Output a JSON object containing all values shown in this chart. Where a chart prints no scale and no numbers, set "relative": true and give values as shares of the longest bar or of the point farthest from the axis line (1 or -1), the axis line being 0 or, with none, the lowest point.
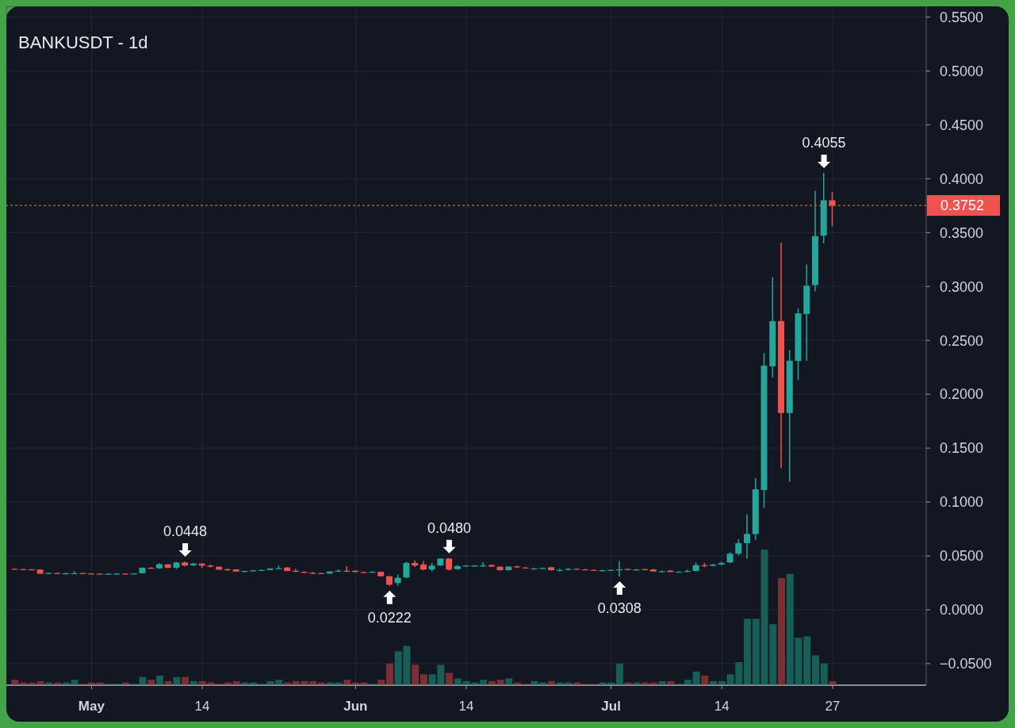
{
  "chart_data": [
    {
      "type": "candlestick",
      "title": "BANKUSDT - 1d",
      "x": [
        "--04-22",
        "--04-23",
        "--04-24",
        "--04-25",
        "--04-26",
        "--04-27",
        "--04-28",
        "--04-29",
        "--04-30",
        "--05-01",
        "--05-02",
        "--05-03",
        "--05-04",
        "--05-05",
        "--05-06",
        "--05-07",
        "--05-08",
        "--05-09",
        "--05-10",
        "--05-11",
        "--05-12",
        "--05-13",
        "--05-14",
        "--05-15",
        "--05-16",
        "--05-17",
        "--05-18",
        "--05-19",
        "--05-20",
        "--05-21",
        "--05-22",
        "--05-23",
        "--05-24",
        "--05-25",
        "--05-26",
        "--05-27",
        "--05-28",
        "--05-29",
        "--05-30",
        "--05-31",
        "--06-01",
        "--06-02",
        "--06-03",
        "--06-04",
        "--06-05",
        "--06-06",
        "--06-07",
        "--06-08",
        "--06-09",
        "--06-10",
        "--06-11",
        "--06-12",
        "--06-13",
        "--06-14",
        "--06-15",
        "--06-16",
        "--06-17",
        "--06-18",
        "--06-19",
        "--06-20",
        "--06-21",
        "--06-22",
        "--06-23",
        "--06-24",
        "--06-25",
        "--06-26",
        "--06-27",
        "--06-28",
        "--06-29",
        "--06-30",
        "--07-01",
        "--07-02",
        "--07-03",
        "--07-04",
        "--07-05",
        "--07-06",
        "--07-07",
        "--07-08",
        "--07-09",
        "--07-10",
        "--07-11",
        "--07-12",
        "--07-13",
        "--07-14",
        "--07-15",
        "--07-16",
        "--07-17",
        "--07-18",
        "--07-19",
        "--07-20",
        "--07-21",
        "--07-22",
        "--07-23",
        "--07-24",
        "--07-25",
        "--07-26",
        "--07-27"
      ],
      "ohlc": [
        [
          0.038,
          0.0383,
          0.0374,
          0.0376
        ],
        [
          0.0377,
          0.038,
          0.0372,
          0.0374
        ],
        [
          0.0375,
          0.0378,
          0.037,
          0.0372
        ],
        [
          0.0373,
          0.0376,
          0.0332,
          0.0334
        ],
        [
          0.0334,
          0.0344,
          0.033,
          0.0342
        ],
        [
          0.0341,
          0.0344,
          0.0333,
          0.0336
        ],
        [
          0.0336,
          0.0346,
          0.0331,
          0.0338
        ],
        [
          0.0337,
          0.0358,
          0.0331,
          0.0339
        ],
        [
          0.034,
          0.0343,
          0.0333,
          0.0336
        ],
        [
          0.0337,
          0.034,
          0.0331,
          0.0334
        ],
        [
          0.0335,
          0.0338,
          0.033,
          0.0333
        ],
        [
          0.0333,
          0.0337,
          0.033,
          0.0334
        ],
        [
          0.0333,
          0.0337,
          0.033,
          0.0335
        ],
        [
          0.0335,
          0.0338,
          0.033,
          0.0333
        ],
        [
          0.0333,
          0.0339,
          0.033,
          0.0337
        ],
        [
          0.0339,
          0.0392,
          0.0336,
          0.039
        ],
        [
          0.039,
          0.0395,
          0.0378,
          0.0384
        ],
        [
          0.0384,
          0.0434,
          0.0378,
          0.0422
        ],
        [
          0.0421,
          0.0425,
          0.0385,
          0.039
        ],
        [
          0.039,
          0.0446,
          0.0378,
          0.0438
        ],
        [
          0.0439,
          0.0448,
          0.0403,
          0.041
        ],
        [
          0.0412,
          0.0436,
          0.0408,
          0.0428
        ],
        [
          0.0428,
          0.0432,
          0.039,
          0.041
        ],
        [
          0.041,
          0.042,
          0.0392,
          0.0399
        ],
        [
          0.0399,
          0.0402,
          0.037,
          0.0372
        ],
        [
          0.0376,
          0.0384,
          0.0362,
          0.0372
        ],
        [
          0.0374,
          0.0377,
          0.0353,
          0.0355
        ],
        [
          0.0355,
          0.0362,
          0.0347,
          0.036
        ],
        [
          0.0358,
          0.0368,
          0.0354,
          0.0366
        ],
        [
          0.0366,
          0.0372,
          0.0362,
          0.0369
        ],
        [
          0.0369,
          0.0386,
          0.0366,
          0.0383
        ],
        [
          0.0382,
          0.041,
          0.0379,
          0.0385
        ],
        [
          0.0392,
          0.0395,
          0.0358,
          0.036
        ],
        [
          0.0362,
          0.038,
          0.035,
          0.0352
        ],
        [
          0.0352,
          0.0355,
          0.034,
          0.0343
        ],
        [
          0.0343,
          0.035,
          0.033,
          0.034
        ],
        [
          0.034,
          0.0344,
          0.0332,
          0.0336
        ],
        [
          0.0336,
          0.0358,
          0.0333,
          0.0355
        ],
        [
          0.0355,
          0.0375,
          0.0352,
          0.0362
        ],
        [
          0.0362,
          0.0405,
          0.035,
          0.0358
        ],
        [
          0.0362,
          0.0366,
          0.0348,
          0.035
        ],
        [
          0.035,
          0.0353,
          0.0343,
          0.0347
        ],
        [
          0.0347,
          0.0356,
          0.0344,
          0.0352
        ],
        [
          0.0352,
          0.0355,
          0.0308,
          0.0311
        ],
        [
          0.0311,
          0.0314,
          0.0222,
          0.0233
        ],
        [
          0.0248,
          0.0328,
          0.0224,
          0.0297
        ],
        [
          0.03,
          0.0446,
          0.0292,
          0.0434
        ],
        [
          0.0434,
          0.0458,
          0.0397,
          0.041
        ],
        [
          0.042,
          0.045,
          0.0365,
          0.0373
        ],
        [
          0.0373,
          0.0434,
          0.0355,
          0.0409
        ],
        [
          0.0412,
          0.0478,
          0.0405,
          0.0475
        ],
        [
          0.0475,
          0.048,
          0.0365,
          0.0372
        ],
        [
          0.0377,
          0.0415,
          0.037,
          0.0405
        ],
        [
          0.0405,
          0.0414,
          0.04,
          0.041
        ],
        [
          0.0408,
          0.0414,
          0.0402,
          0.041
        ],
        [
          0.0408,
          0.0441,
          0.0398,
          0.0411
        ],
        [
          0.0415,
          0.042,
          0.0396,
          0.04
        ],
        [
          0.0399,
          0.0402,
          0.0364,
          0.0367
        ],
        [
          0.0367,
          0.0404,
          0.0363,
          0.04
        ],
        [
          0.0402,
          0.041,
          0.039,
          0.0395
        ],
        [
          0.0392,
          0.0396,
          0.0382,
          0.0385
        ],
        [
          0.038,
          0.0388,
          0.0372,
          0.0383
        ],
        [
          0.0382,
          0.0392,
          0.0378,
          0.0388
        ],
        [
          0.0394,
          0.0397,
          0.0364,
          0.0367
        ],
        [
          0.0367,
          0.038,
          0.0355,
          0.037
        ],
        [
          0.037,
          0.0385,
          0.0366,
          0.038
        ],
        [
          0.038,
          0.0384,
          0.0372,
          0.0375
        ],
        [
          0.0375,
          0.0378,
          0.0366,
          0.037
        ],
        [
          0.037,
          0.0373,
          0.0359,
          0.0362
        ],
        [
          0.0362,
          0.037,
          0.0355,
          0.0367
        ],
        [
          0.0367,
          0.0374,
          0.0362,
          0.037
        ],
        [
          0.037,
          0.0451,
          0.0308,
          0.0375
        ],
        [
          0.0378,
          0.0382,
          0.0366,
          0.037
        ],
        [
          0.037,
          0.0378,
          0.0366,
          0.0374
        ],
        [
          0.0376,
          0.038,
          0.0368,
          0.0372
        ],
        [
          0.0374,
          0.0378,
          0.0352,
          0.0355
        ],
        [
          0.0355,
          0.0362,
          0.0345,
          0.0358
        ],
        [
          0.0363,
          0.037,
          0.0348,
          0.035
        ],
        [
          0.035,
          0.0356,
          0.0346,
          0.0353
        ],
        [
          0.0352,
          0.0372,
          0.0348,
          0.036
        ],
        [
          0.036,
          0.0438,
          0.0356,
          0.0414
        ],
        [
          0.0414,
          0.0434,
          0.0395,
          0.0405
        ],
        [
          0.0408,
          0.0425,
          0.0402,
          0.042
        ],
        [
          0.042,
          0.0444,
          0.0414,
          0.0434
        ],
        [
          0.044,
          0.0535,
          0.0432,
          0.052
        ],
        [
          0.052,
          0.0655,
          0.0505,
          0.0618
        ],
        [
          0.0618,
          0.0885,
          0.0474,
          0.0704
        ],
        [
          0.0702,
          0.1221,
          0.0649,
          0.1118
        ],
        [
          0.1111,
          0.2382,
          0.0946,
          0.2265
        ],
        [
          0.2259,
          0.3086,
          0.2154,
          0.2679
        ],
        [
          0.2679,
          0.3406,
          0.1313,
          0.1826
        ],
        [
          0.1826,
          0.2409,
          0.119,
          0.2311
        ],
        [
          0.2309,
          0.2797,
          0.2133,
          0.275
        ],
        [
          0.2745,
          0.3204,
          0.2309,
          0.3007
        ],
        [
          0.3013,
          0.3887,
          0.2956,
          0.3467
        ],
        [
          0.3472,
          0.4055,
          0.3401,
          0.38
        ],
        [
          0.38,
          0.3875,
          0.3559,
          0.3752
        ]
      ],
      "colors": [
        "#ef5350",
        "#ef5350",
        "#ef5350",
        "#ef5350",
        "#26a69a",
        "#ef5350",
        "#26a69a",
        "#26a69a",
        "#ef5350",
        "#ef5350",
        "#ef5350",
        "#26a69a",
        "#26a69a",
        "#ef5350",
        "#26a69a",
        "#26a69a",
        "#ef5350",
        "#26a69a",
        "#ef5350",
        "#26a69a",
        "#ef5350",
        "#26a69a",
        "#ef5350",
        "#ef5350",
        "#ef5350",
        "#ef5350",
        "#ef5350",
        "#26a69a",
        "#26a69a",
        "#26a69a",
        "#26a69a",
        "#26a69a",
        "#ef5350",
        "#ef5350",
        "#ef5350",
        "#ef5350",
        "#ef5350",
        "#26a69a",
        "#26a69a",
        "#ef5350",
        "#ef5350",
        "#ef5350",
        "#26a69a",
        "#ef5350",
        "#ef5350",
        "#26a69a",
        "#26a69a",
        "#ef5350",
        "#ef5350",
        "#26a69a",
        "#26a69a",
        "#ef5350",
        "#26a69a",
        "#26a69a",
        "#26a69a",
        "#26a69a",
        "#ef5350",
        "#ef5350",
        "#26a69a",
        "#ef5350",
        "#ef5350",
        "#26a69a",
        "#26a69a",
        "#ef5350",
        "#26a69a",
        "#26a69a",
        "#ef5350",
        "#ef5350",
        "#ef5350",
        "#26a69a",
        "#26a69a",
        "#26a69a",
        "#ef5350",
        "#26a69a",
        "#ef5350",
        "#ef5350",
        "#26a69a",
        "#ef5350",
        "#26a69a",
        "#26a69a",
        "#26a69a",
        "#ef5350",
        "#26a69a",
        "#26a69a",
        "#26a69a",
        "#26a69a",
        "#26a69a",
        "#26a69a",
        "#26a69a",
        "#26a69a",
        "#ef5350",
        "#26a69a",
        "#26a69a",
        "#26a69a",
        "#26a69a",
        "#26a69a",
        "#ef5350"
      ],
      "xlim": [
        "--04-21",
        "--08-07"
      ],
      "xticks": [
        {
          "value": "--05-01",
          "label": "May"
        },
        {
          "value": "--05-14",
          "label": "14"
        },
        {
          "value": "--06-01",
          "label": "Jun"
        },
        {
          "value": "--06-14",
          "label": "14"
        },
        {
          "value": "--07-01",
          "label": "Jul"
        },
        {
          "value": "--07-14",
          "label": "14"
        },
        {
          "value": "--07-27",
          "label": "27"
        }
      ],
      "ylim": [
        -0.07,
        0.56
      ],
      "yticks": [
        {
          "value": -0.05,
          "label": "−0.0500"
        },
        {
          "value": 0,
          "label": "0.0000"
        },
        {
          "value": 0.05,
          "label": "0.0500"
        },
        {
          "value": 0.1,
          "label": "0.1000"
        },
        {
          "value": 0.15,
          "label": "0.1500"
        },
        {
          "value": 0.2,
          "label": "0.2000"
        },
        {
          "value": 0.25,
          "label": "0.2500"
        },
        {
          "value": 0.3,
          "label": "0.3000"
        },
        {
          "value": 0.35,
          "label": "0.3500"
        },
        {
          "value": 0.4,
          "label": "0.4000"
        },
        {
          "value": 0.45,
          "label": "0.4500"
        },
        {
          "value": 0.5,
          "label": "0.5000"
        },
        {
          "value": 0.55,
          "label": "0.5500"
        }
      ],
      "grid": true,
      "ref_lines": [
        {
          "axis": "y",
          "value": 0.3752,
          "label": "0.3752",
          "color": "#ef5350",
          "line_style": "dotted"
        }
      ],
      "annotations": [
        {
          "text": "0.0448",
          "x": "--05-12",
          "y": 0.0448
        },
        {
          "text": "0.0222",
          "x": "--06-05",
          "y": 0.0222
        },
        {
          "text": "0.0480",
          "x": "--06-12",
          "y": 0.048
        },
        {
          "text": "0.0308",
          "x": "--07-02",
          "y": 0.0308
        },
        {
          "text": "0.4055",
          "x": "--07-26",
          "y": 0.4055
        }
      ]
    },
    {
      "type": "bar",
      "relative": true,
      "tick_labels": false,
      "x": [
        "--04-22",
        "--04-23",
        "--04-24",
        "--04-25",
        "--04-26",
        "--04-27",
        "--04-28",
        "--04-29",
        "--04-30",
        "--05-01",
        "--05-02",
        "--05-03",
        "--05-04",
        "--05-05",
        "--05-06",
        "--05-07",
        "--05-08",
        "--05-09",
        "--05-10",
        "--05-11",
        "--05-12",
        "--05-13",
        "--05-14",
        "--05-15",
        "--05-16",
        "--05-17",
        "--05-18",
        "--05-19",
        "--05-20",
        "--05-21",
        "--05-22",
        "--05-23",
        "--05-24",
        "--05-25",
        "--05-26",
        "--05-27",
        "--05-28",
        "--05-29",
        "--05-30",
        "--05-31",
        "--06-01",
        "--06-02",
        "--06-03",
        "--06-04",
        "--06-05",
        "--06-06",
        "--06-07",
        "--06-08",
        "--06-09",
        "--06-10",
        "--06-11",
        "--06-12",
        "--06-13",
        "--06-14",
        "--06-15",
        "--06-16",
        "--06-17",
        "--06-18",
        "--06-19",
        "--06-20",
        "--06-21",
        "--06-22",
        "--06-23",
        "--06-24",
        "--06-25",
        "--06-26",
        "--06-27",
        "--06-28",
        "--06-29",
        "--06-30",
        "--07-01",
        "--07-02",
        "--07-03",
        "--07-04",
        "--07-05",
        "--07-06",
        "--07-07",
        "--07-08",
        "--07-09",
        "--07-10",
        "--07-11",
        "--07-12",
        "--07-13",
        "--07-14",
        "--07-15",
        "--07-16",
        "--07-17",
        "--07-18",
        "--07-19",
        "--07-20",
        "--07-21",
        "--07-22",
        "--07-23",
        "--07-24",
        "--07-25",
        "--07-26",
        "--07-27"
      ],
      "xlim": [
        "--04-21",
        "--08-07"
      ],
      "values": [
        0.04,
        0.02,
        0.02,
        0.03,
        0.02,
        0.02,
        0.02,
        0.04,
        0.01,
        0.02,
        0.02,
        0.01,
        0.01,
        0.02,
        0.01,
        0.06,
        0.04,
        0.07,
        0.03,
        0.06,
        0.06,
        0.03,
        0.03,
        0.02,
        0.01,
        0.02,
        0.03,
        0.02,
        0.02,
        0.01,
        0.03,
        0.04,
        0.02,
        0.03,
        0.03,
        0.03,
        0.02,
        0.02,
        0.02,
        0.04,
        0.02,
        0.02,
        0.01,
        0.04,
        0.16,
        0.25,
        0.29,
        0.15,
        0.08,
        0.08,
        0.15,
        0.09,
        0.05,
        0.03,
        0.02,
        0.04,
        0.03,
        0.04,
        0.05,
        0.02,
        0.01,
        0.03,
        0.02,
        0.03,
        0.02,
        0.02,
        0.02,
        0.01,
        0.01,
        0.02,
        0.02,
        0.16,
        0.02,
        0.02,
        0.02,
        0.02,
        0.03,
        0.03,
        0.01,
        0.04,
        0.1,
        0.07,
        0.03,
        0.03,
        0.08,
        0.17,
        0.49,
        0.49,
        1,
        0.45,
        0.79,
        0.82,
        0.35,
        0.36,
        0.22,
        0.16,
        0.03
      ],
      "colors": [
        "#7a2f35",
        "#7a2f35",
        "#7a2f35",
        "#7a2f35",
        "#175e57",
        "#7a2f35",
        "#175e57",
        "#175e57",
        "#7a2f35",
        "#7a2f35",
        "#7a2f35",
        "#175e57",
        "#175e57",
        "#7a2f35",
        "#175e57",
        "#175e57",
        "#7a2f35",
        "#175e57",
        "#7a2f35",
        "#175e57",
        "#7a2f35",
        "#175e57",
        "#7a2f35",
        "#7a2f35",
        "#7a2f35",
        "#7a2f35",
        "#7a2f35",
        "#175e57",
        "#175e57",
        "#175e57",
        "#175e57",
        "#175e57",
        "#7a2f35",
        "#7a2f35",
        "#7a2f35",
        "#7a2f35",
        "#7a2f35",
        "#175e57",
        "#175e57",
        "#7a2f35",
        "#7a2f35",
        "#7a2f35",
        "#175e57",
        "#7a2f35",
        "#7a2f35",
        "#175e57",
        "#175e57",
        "#7a2f35",
        "#7a2f35",
        "#175e57",
        "#175e57",
        "#7a2f35",
        "#175e57",
        "#175e57",
        "#175e57",
        "#175e57",
        "#7a2f35",
        "#7a2f35",
        "#175e57",
        "#7a2f35",
        "#7a2f35",
        "#175e57",
        "#175e57",
        "#7a2f35",
        "#175e57",
        "#175e57",
        "#7a2f35",
        "#7a2f35",
        "#7a2f35",
        "#175e57",
        "#175e57",
        "#175e57",
        "#7a2f35",
        "#175e57",
        "#7a2f35",
        "#7a2f35",
        "#175e57",
        "#7a2f35",
        "#175e57",
        "#175e57",
        "#175e57",
        "#7a2f35",
        "#175e57",
        "#175e57",
        "#175e57",
        "#175e57",
        "#175e57",
        "#175e57",
        "#175e57",
        "#175e57",
        "#7a2f35",
        "#175e57",
        "#175e57",
        "#175e57",
        "#175e57",
        "#175e57",
        "#7a2f35"
      ]
    }
  ]
}
